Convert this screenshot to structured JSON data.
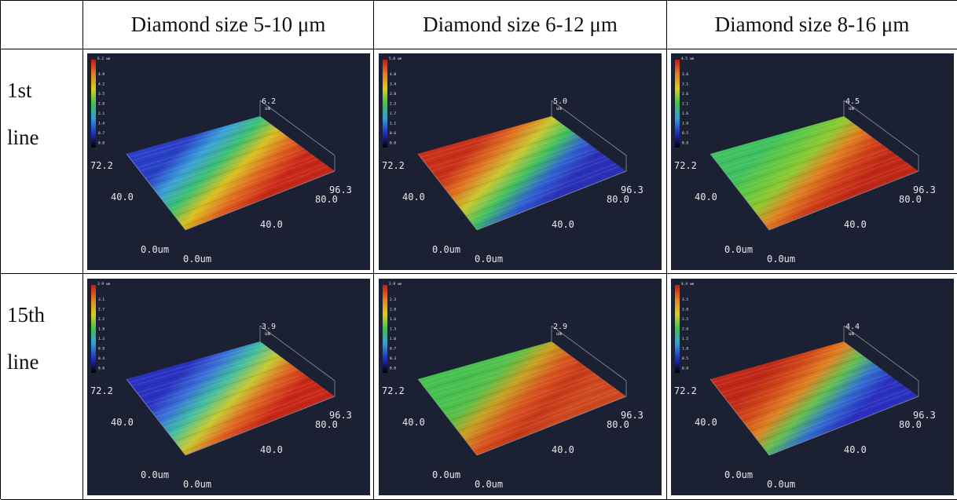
{
  "header": [
    "Diamond size 5-10 μm",
    "Diamond size 6-12 μm",
    "Diamond size 8-16 μm"
  ],
  "rows": [
    {
      "label": [
        "1st",
        "line"
      ],
      "plots": [
        {
          "scale_title": "6.2 um",
          "colorbar": [
            "4.9",
            "4.2",
            "3.5",
            "2.8",
            "2.1",
            "1.4",
            "0.7",
            "0.0"
          ],
          "peak": [
            "6.2",
            "um"
          ],
          "axes": [
            "72.2",
            "40.0",
            "0.0um",
            "0.0um",
            "40.0",
            "80.0",
            "96.3"
          ]
        },
        {
          "scale_title": "5.0 um",
          "colorbar": [
            "4.0",
            "3.4",
            "2.8",
            "2.3",
            "1.7",
            "1.1",
            "0.6",
            "0.0"
          ],
          "peak": [
            "5.0",
            "um"
          ],
          "axes": [
            "72.2",
            "40.0",
            "0.0um",
            "0.0um",
            "40.0",
            "80.0",
            "96.3"
          ]
        },
        {
          "scale_title": "4.5 um",
          "colorbar": [
            "3.6",
            "3.1",
            "2.6",
            "2.1",
            "1.6",
            "1.0",
            "0.5",
            "0.0"
          ],
          "peak": [
            "4.5",
            "um"
          ],
          "axes": [
            "72.2",
            "40.0",
            "0.0um",
            "0.0um",
            "40.0",
            "80.0",
            "96.3"
          ]
        }
      ]
    },
    {
      "label": [
        "15th",
        "line"
      ],
      "plots": [
        {
          "scale_title": "3.9 um",
          "colorbar": [
            "3.1",
            "2.7",
            "2.2",
            "1.8",
            "1.3",
            "0.9",
            "0.4",
            "0.0"
          ],
          "peak": [
            "3.9",
            "um"
          ],
          "axes": [
            "72.2",
            "40.0",
            "0.0um",
            "0.0um",
            "40.0",
            "80.0",
            "96.3"
          ]
        },
        {
          "scale_title": "2.9 um",
          "colorbar": [
            "2.3",
            "2.0",
            "1.6",
            "1.3",
            "1.0",
            "0.7",
            "0.3",
            "0.0"
          ],
          "peak": [
            "2.9",
            "um"
          ],
          "axes": [
            "72.2",
            "40.0",
            "0.0um",
            "0.0um",
            "40.0",
            "80.0",
            "96.3"
          ]
        },
        {
          "scale_title": "4.4 um",
          "colorbar": [
            "3.5",
            "3.0",
            "2.5",
            "2.0",
            "1.5",
            "1.0",
            "0.5",
            "0.0"
          ],
          "peak": [
            "4.4",
            "um"
          ],
          "axes": [
            "72.2",
            "40.0",
            "0.0um",
            "0.0um",
            "40.0",
            "80.0",
            "96.3"
          ]
        }
      ]
    }
  ]
}
